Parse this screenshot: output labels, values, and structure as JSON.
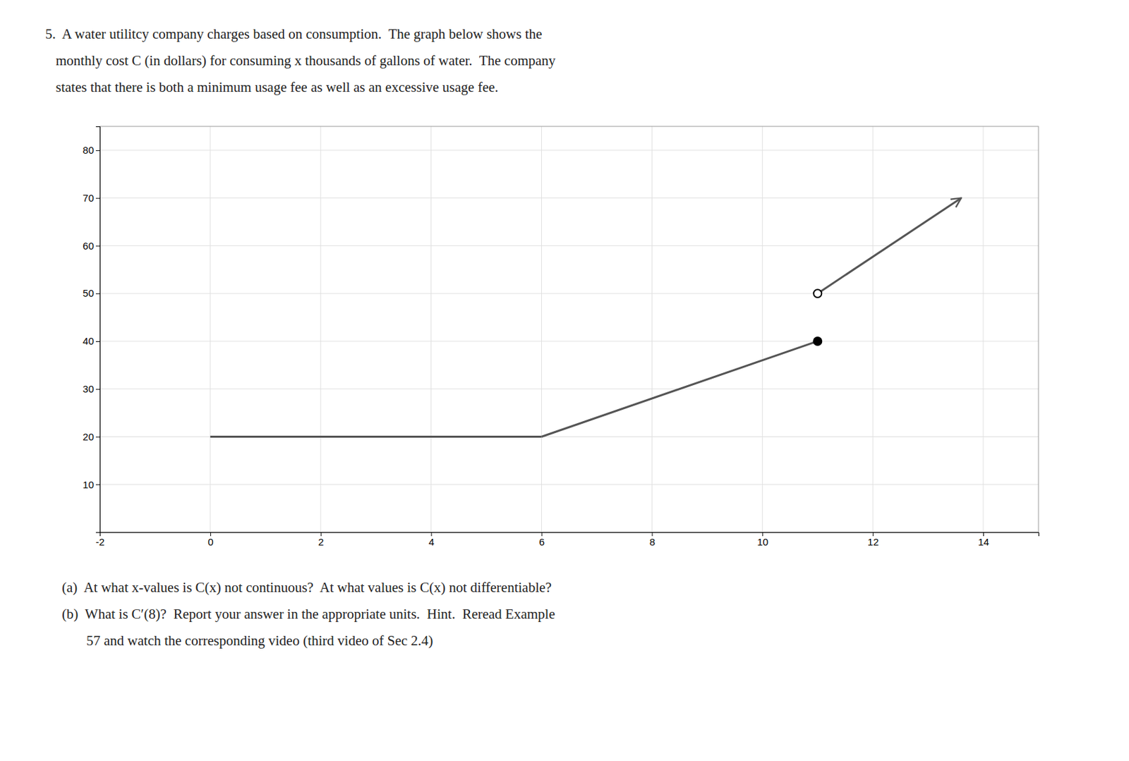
{
  "chart_data": {
    "type": "line",
    "title": [
      "5.  A water utilitcy company charges based on consumption.  The graph below shows the",
      "   monthly cost C (in dollars) for consuming x thousands of gallons of water.  The company",
      "   states that there is both a minimum usage fee as well as an excessive usage fee."
    ],
    "annotations": [
      "(a)  At what x-values is C(x) not continuous?  At what values is C(x) not differentiable?",
      "(b)  What is C′(8)?  Report your answer in the appropriate units.  Hint.  Reread Example",
      "       57 and watch the corresponding video (third video of Sec 2.4)"
    ],
    "xlim": [
      -2,
      15
    ],
    "ylim": [
      0,
      85
    ],
    "xticks": [
      -2,
      0,
      2,
      4,
      6,
      8,
      10,
      12,
      14
    ],
    "yticks": [
      10,
      20,
      30,
      40,
      50,
      60,
      70,
      80
    ],
    "grid": true,
    "series": [
      {
        "type": "line",
        "x": [
          0,
          6
        ],
        "values": [
          20,
          20
        ],
        "color": "#555555"
      },
      {
        "type": "line",
        "x": [
          6,
          11
        ],
        "values": [
          20,
          40
        ],
        "color": "#555555"
      },
      {
        "type": "line",
        "x": [
          11,
          13.6
        ],
        "values": [
          50,
          70
        ],
        "color": "#555555",
        "marker": "arrow"
      },
      {
        "type": "scatter",
        "x": [
          11
        ],
        "values": [
          40
        ],
        "color": "#000000",
        "marker": "filled"
      },
      {
        "type": "scatter",
        "x": [
          11
        ],
        "values": [
          50
        ],
        "color": "#000000",
        "marker": "open"
      }
    ]
  }
}
